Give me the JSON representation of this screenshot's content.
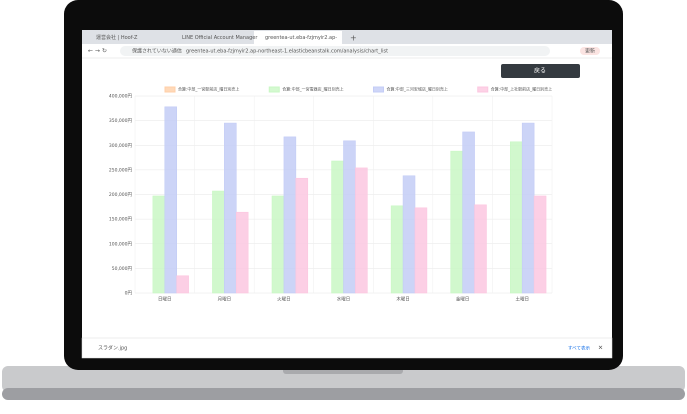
{
  "browser": {
    "tabs": [
      "運営会社 | Hoof-Z",
      "LINE Official Account Manager",
      "greentea-ut.eba-fzjmyir2.ap-"
    ],
    "security": "保護されていない通信",
    "url": "greentea-ut.eba-fzjmyir2.ap-northeast-1.elasticbeanstalk.com/analysis/chart_list",
    "update_button": "更新"
  },
  "page": {
    "back_button": "戻る"
  },
  "downloads": {
    "file": "スラダン.jpg",
    "show_all": "すべて表示"
  },
  "chart_data": {
    "type": "bar",
    "categories": [
      "日曜日",
      "月曜日",
      "火曜日",
      "水曜日",
      "木曜日",
      "金曜日",
      "土曜日"
    ],
    "series": [
      {
        "name": "合算:中部_一宮駅前店_曜日別売上",
        "color": "#ffcfa8",
        "values": [
          0,
          0,
          0,
          0,
          0,
          0,
          0
        ]
      },
      {
        "name": "合算:中部_一宮電器店_曜日別売上",
        "color": "#c9f7c4",
        "values": [
          197000,
          207000,
          197000,
          268000,
          177000,
          288000,
          307000
        ]
      },
      {
        "name": "合算:中部_三河安城店_曜日別売上",
        "color": "#c3ccf6",
        "values": [
          378000,
          345000,
          317000,
          309000,
          238000,
          327000,
          345000
        ]
      },
      {
        "name": "合算:中部_上社駅前店_曜日別売上",
        "color": "#fcc7e0",
        "values": [
          35000,
          164000,
          233000,
          254000,
          173000,
          179000,
          197000
        ]
      }
    ],
    "ylim": [
      0,
      400000
    ],
    "yticks": [
      {
        "value": 0,
        "label": "0円"
      },
      {
        "value": 50000,
        "label": "50,000円"
      },
      {
        "value": 100000,
        "label": "100,000円"
      },
      {
        "value": 150000,
        "label": "150,000円"
      },
      {
        "value": 200000,
        "label": "200,000円"
      },
      {
        "value": 250000,
        "label": "250,000円"
      },
      {
        "value": 300000,
        "label": "300,000円"
      },
      {
        "value": 350000,
        "label": "350,000円"
      },
      {
        "value": 400000,
        "label": "400,000円"
      }
    ],
    "grid": true
  }
}
